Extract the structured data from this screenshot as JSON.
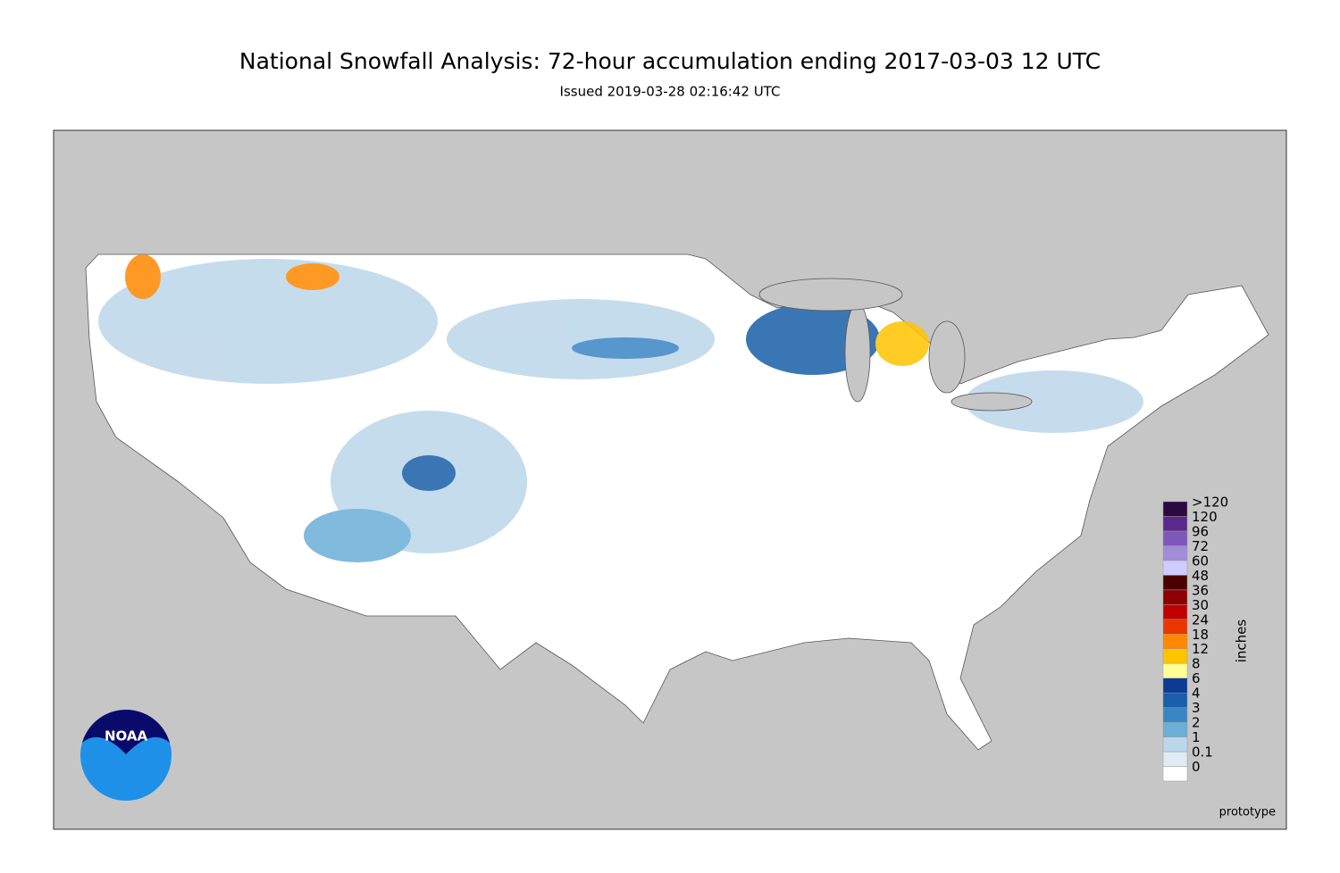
{
  "header": {
    "title": "National Snowfall Analysis: 72-hour accumulation ending 2017-03-03 12 UTC",
    "subtitle": "Issued 2019-03-28 02:16:42 UTC"
  },
  "legend": {
    "title": "inches",
    "labels": [
      "0",
      "0.1",
      "1",
      "2",
      "3",
      "4",
      "6",
      "8",
      "12",
      "18",
      "24",
      "30",
      "36",
      "48",
      "60",
      "72",
      "96",
      "120",
      ">120"
    ],
    "colors": [
      "#ffffff",
      "#e1ebf5",
      "#bcd6ea",
      "#6baed6",
      "#3b85c4",
      "#1a5fa8",
      "#0c3a94",
      "#ffff96",
      "#ffc400",
      "#ff8800",
      "#e83800",
      "#c00000",
      "#8c0000",
      "#4a0000",
      "#ccccff",
      "#a08cd8",
      "#7e57b8",
      "#5a2a8a",
      "#2a0a40"
    ]
  },
  "logo": {
    "text": "NOAA"
  },
  "note": "prototype"
}
